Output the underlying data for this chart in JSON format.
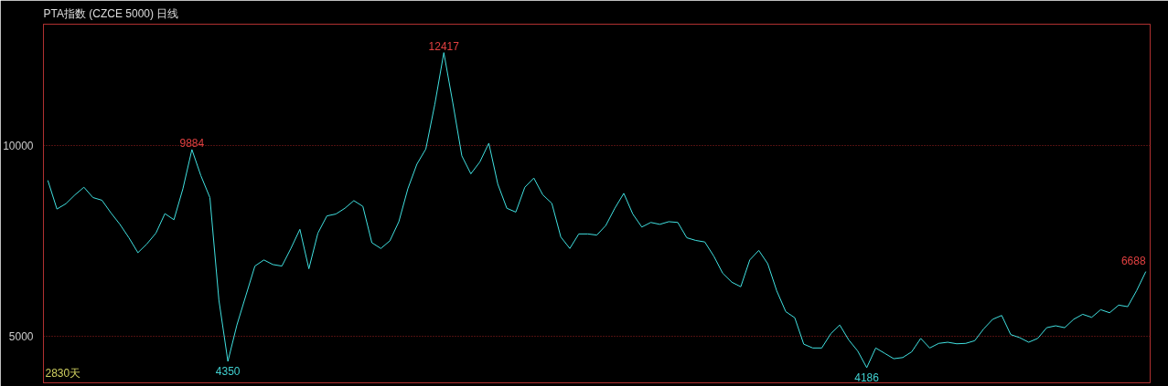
{
  "chart_data": {
    "type": "line",
    "title": "PTA指数 (CZCE 5000) 日线",
    "categories": [
      null,
      null,
      null,
      null,
      null,
      null,
      null,
      null,
      null,
      null,
      null,
      null,
      null,
      null,
      null,
      null,
      null,
      null,
      null,
      null,
      null,
      null,
      null,
      null,
      null,
      null,
      null,
      null,
      null,
      null,
      null,
      null,
      null,
      null,
      null,
      null,
      null,
      null,
      null,
      null,
      null,
      null,
      null,
      null,
      null,
      null,
      null,
      null,
      null,
      null,
      null,
      null,
      null,
      null,
      null,
      null,
      null,
      null,
      null,
      null,
      null,
      null,
      null,
      null,
      null,
      null,
      null,
      null,
      null,
      null,
      null,
      null,
      null,
      null,
      null,
      null,
      null,
      null,
      null,
      null,
      null,
      null,
      null,
      null,
      null,
      null,
      null,
      null,
      null,
      null,
      null,
      null,
      null,
      null,
      null,
      null,
      null,
      null,
      null,
      null,
      null,
      null,
      null,
      null,
      null,
      null,
      null,
      null,
      null,
      null,
      null,
      null,
      null,
      null,
      null,
      null,
      null,
      null,
      null,
      null,
      null,
      null,
      null
    ],
    "series": [
      {
        "color": "#40e0e0",
        "values": [
          9070,
          8330,
          8470,
          8700,
          8900,
          8630,
          8560,
          8230,
          7930,
          7580,
          7190,
          7420,
          7700,
          8210,
          8050,
          8860,
          9884,
          9200,
          8630,
          5950,
          4350,
          5300,
          6070,
          6840,
          7000,
          6880,
          6840,
          7300,
          7800,
          6770,
          7700,
          8150,
          8200,
          8350,
          8550,
          8400,
          7450,
          7300,
          7500,
          8000,
          8860,
          9500,
          9900,
          11070,
          12417,
          11100,
          9720,
          9250,
          9560,
          10050,
          8980,
          8350,
          8250,
          8900,
          9140,
          8700,
          8480,
          7600,
          7300,
          7680,
          7680,
          7650,
          7900,
          8350,
          8740,
          8200,
          7860,
          7980,
          7930,
          8000,
          7980,
          7580,
          7510,
          7470,
          7100,
          6650,
          6420,
          6300,
          7000,
          7250,
          6900,
          6190,
          5650,
          5490,
          4800,
          4700,
          4700,
          5070,
          5300,
          4910,
          4620,
          4186,
          4700,
          4560,
          4420,
          4450,
          4600,
          4950,
          4700,
          4820,
          4850,
          4810,
          4820,
          4890,
          5200,
          5450,
          5550,
          5050,
          4970,
          4850,
          4950,
          5230,
          5280,
          5230,
          5450,
          5580,
          5500,
          5700,
          5620,
          5820,
          5780,
          6200,
          6688
        ]
      }
    ],
    "ylim": [
      3790,
      13160
    ],
    "yticks": [
      5000,
      10000
    ],
    "grid": "y",
    "annotations": [
      {
        "text": "9884",
        "y": 9884
      },
      {
        "text": "4350",
        "y": 4350
      },
      {
        "text": "12417",
        "y": 12417
      },
      {
        "text": "4186",
        "y": 4186
      },
      "2830天",
      "6688"
    ]
  }
}
